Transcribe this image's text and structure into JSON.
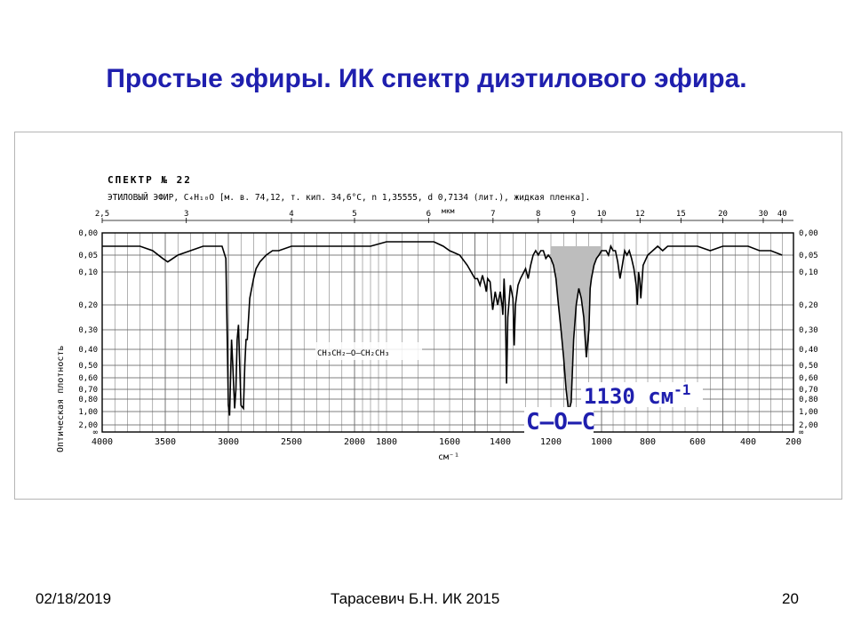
{
  "slide": {
    "title": "Простые эфиры. ИК спектр диэтилового эфира."
  },
  "spectrum_header": {
    "line1": "СПЕКТР № 22",
    "line2": "ЭТИЛОВЫЙ ЭФИР, C₄H₁₀O [м. в. 74,12, т. кип. 34,6°C, n 1,35555, d 0,7134 (лит.), жидкая пленка].",
    "unit_mkm": "мкм"
  },
  "structure_formula": "CH₃CH₂–O–CH₂CH₃",
  "annotation": {
    "peak_label": "1130 см",
    "peak_label_sup": "-1",
    "group_label": "C–O–C"
  },
  "chart_data": {
    "type": "line",
    "title": "",
    "xlabel": "см⁻¹",
    "ylabel": "Оптическая плотность",
    "x_bottom_ticks": [
      "4000",
      "3500",
      "3000",
      "2500",
      "2000",
      "1800",
      "1600",
      "1400",
      "1200",
      "1000",
      "800",
      "600",
      "400",
      "200"
    ],
    "x_top_ticks": [
      "2,5",
      "3",
      "4",
      "5",
      "6",
      "7",
      "8",
      "9",
      "10",
      "12",
      "15",
      "20",
      "30",
      "40"
    ],
    "y_ticks": [
      "0,00",
      "0,05",
      "0,10",
      "0,20",
      "0,30",
      "0,40",
      "0,50",
      "0,60",
      "0,70",
      "0,80",
      "1,00",
      "2,00",
      "∞"
    ],
    "grid": true,
    "highlight_band": [
      1000,
      1200
    ],
    "series": [
      {
        "x": [
          4000,
          3900,
          3800,
          3700,
          3600,
          3520,
          3480,
          3400,
          3300,
          3200,
          3100,
          3050,
          3020,
          3000,
          2990,
          2975,
          2965,
          2950,
          2940,
          2930,
          2920,
          2900,
          2880,
          2870,
          2860,
          2850,
          2830,
          2800,
          2780,
          2750,
          2700,
          2650,
          2600,
          2500,
          2400,
          2300,
          2200,
          2100,
          2000,
          1900,
          1800,
          1700,
          1650,
          1620,
          1600,
          1560,
          1530,
          1500,
          1490,
          1480,
          1470,
          1460,
          1455,
          1450,
          1440,
          1430,
          1420,
          1410,
          1400,
          1392,
          1390,
          1385,
          1380,
          1375,
          1370,
          1360,
          1350,
          1345,
          1340,
          1330,
          1320,
          1300,
          1290,
          1280,
          1270,
          1260,
          1250,
          1240,
          1230,
          1220,
          1210,
          1200,
          1190,
          1180,
          1170,
          1160,
          1150,
          1140,
          1130,
          1120,
          1115,
          1110,
          1100,
          1090,
          1080,
          1070,
          1060,
          1050,
          1045,
          1040,
          1030,
          1020,
          1010,
          1000,
          990,
          980,
          970,
          960,
          950,
          940,
          930,
          920,
          910,
          900,
          890,
          880,
          870,
          860,
          850,
          845,
          840,
          835,
          830,
          820,
          800,
          780,
          760,
          740,
          720,
          700,
          650,
          600,
          550,
          500,
          450,
          400,
          350,
          300,
          250
        ],
        "y": [
          0.03,
          0.03,
          0.03,
          0.03,
          0.04,
          0.06,
          0.07,
          0.05,
          0.04,
          0.03,
          0.03,
          0.03,
          0.06,
          0.9,
          1.3,
          0.35,
          0.5,
          0.95,
          0.7,
          0.35,
          0.28,
          0.9,
          0.95,
          0.5,
          0.35,
          0.35,
          0.18,
          0.12,
          0.09,
          0.07,
          0.05,
          0.04,
          0.04,
          0.03,
          0.03,
          0.03,
          0.03,
          0.03,
          0.03,
          0.03,
          0.02,
          0.02,
          0.02,
          0.03,
          0.04,
          0.05,
          0.08,
          0.12,
          0.12,
          0.14,
          0.11,
          0.14,
          0.16,
          0.12,
          0.13,
          0.22,
          0.16,
          0.2,
          0.16,
          0.21,
          0.24,
          0.12,
          0.2,
          0.65,
          0.25,
          0.14,
          0.18,
          0.38,
          0.2,
          0.14,
          0.12,
          0.09,
          0.12,
          0.08,
          0.05,
          0.04,
          0.05,
          0.04,
          0.04,
          0.06,
          0.05,
          0.06,
          0.08,
          0.12,
          0.2,
          0.3,
          0.45,
          0.7,
          1.0,
          0.85,
          0.55,
          0.35,
          0.2,
          0.15,
          0.18,
          0.25,
          0.45,
          0.3,
          0.15,
          0.12,
          0.08,
          0.06,
          0.05,
          0.04,
          0.04,
          0.04,
          0.05,
          0.03,
          0.04,
          0.04,
          0.07,
          0.12,
          0.08,
          0.04,
          0.05,
          0.04,
          0.06,
          0.09,
          0.14,
          0.2,
          0.1,
          0.12,
          0.18,
          0.08,
          0.05,
          0.04,
          0.03,
          0.04,
          0.03,
          0.03,
          0.03,
          0.03,
          0.04,
          0.03,
          0.03,
          0.03,
          0.04,
          0.04,
          0.05
        ]
      }
    ]
  },
  "footer": {
    "date": "02/18/2019",
    "author": "Тарасевич Б.Н. ИК 2015",
    "page": "20"
  }
}
